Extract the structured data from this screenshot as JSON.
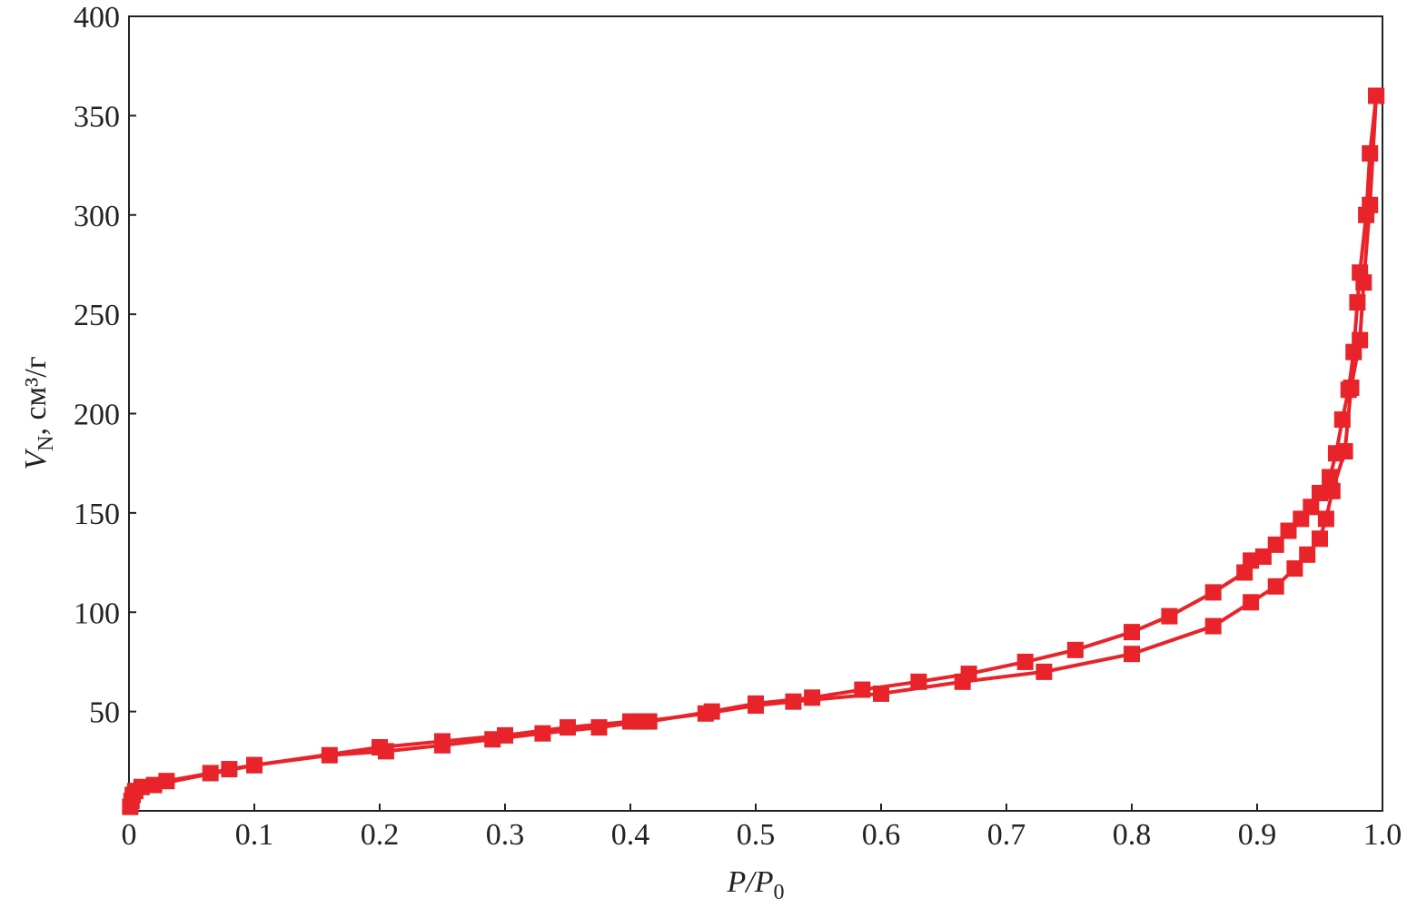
{
  "chart_data": {
    "type": "line",
    "xlabel": {
      "main": "P/P",
      "sub": "0"
    },
    "ylabel": {
      "main": "V",
      "sub": "N",
      "rest": ", см³/г"
    },
    "xlim": [
      0,
      1
    ],
    "ylim": [
      0,
      400
    ],
    "xticks": [
      0,
      0.1,
      0.2,
      0.3,
      0.4,
      0.5,
      0.6,
      0.7,
      0.8,
      0.9,
      {
        "value": 1,
        "label": "1.0"
      }
    ],
    "yticks": [
      50,
      100,
      150,
      200,
      250,
      300,
      350,
      400
    ],
    "marker": "square",
    "series": [
      {
        "color": "#e8242a",
        "x": [
          0.001,
          0.002,
          0.003,
          0.005,
          0.01,
          0.03,
          0.065,
          0.08,
          0.1,
          0.16,
          0.205,
          0.25,
          0.29,
          0.33,
          0.375,
          0.41,
          0.46,
          0.5,
          0.53,
          0.6,
          0.665,
          0.73,
          0.8,
          0.865,
          0.895,
          0.915,
          0.93,
          0.94,
          0.95,
          0.955,
          0.96,
          0.97,
          0.975,
          0.982,
          0.985,
          0.99,
          0.995
        ],
        "values": [
          2,
          5,
          8,
          10,
          12,
          15,
          19,
          21,
          23,
          28,
          30,
          33,
          36,
          39,
          42,
          45,
          49,
          53,
          55,
          59,
          65,
          70,
          79,
          93,
          105,
          113,
          122,
          129,
          137,
          147,
          161,
          181,
          213,
          237,
          266,
          305,
          360
        ]
      },
      {
        "color": "#e8242a",
        "x": [
          0.995,
          0.99,
          0.987,
          0.982,
          0.98,
          0.977,
          0.973,
          0.968,
          0.963,
          0.958,
          0.95,
          0.943,
          0.935,
          0.925,
          0.915,
          0.905,
          0.895,
          0.89,
          0.865,
          0.83,
          0.8,
          0.755,
          0.715,
          0.67,
          0.63,
          0.585,
          0.545,
          0.5,
          0.465,
          0.415,
          0.4,
          0.35,
          0.3,
          0.25,
          0.2,
          0.1,
          0.02
        ],
        "values": [
          360,
          331,
          300,
          271,
          256,
          231,
          212,
          197,
          180,
          168,
          160,
          153,
          147,
          141,
          134,
          128,
          126,
          120,
          110,
          98,
          90,
          81,
          75,
          69,
          65,
          61,
          57,
          54,
          50,
          45,
          45,
          42,
          38,
          35,
          32,
          23,
          13
        ]
      }
    ]
  }
}
